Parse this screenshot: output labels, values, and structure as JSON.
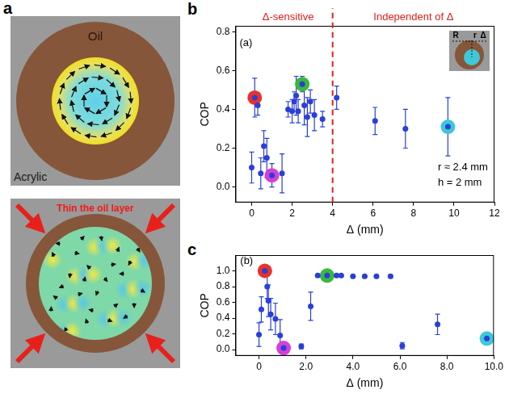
{
  "diagram": {
    "panel": "a",
    "labels": {
      "oil": "Oil",
      "acrylic": "Acrylic",
      "action": "Thin the oil layer"
    }
  },
  "chart_data": [
    {
      "type": "scatter",
      "panel": "b",
      "x_label": "Δ (mm)",
      "y_label": "COP",
      "xlim": [
        -0.8,
        12
      ],
      "xticks": [
        0,
        2,
        4,
        6,
        8,
        10,
        12
      ],
      "ylim": [
        -0.08,
        0.83
      ],
      "yticks": [
        {
          "value": 0,
          "label": "0.0"
        },
        0.2,
        0.4,
        0.6,
        0.8
      ],
      "grid": false,
      "series": [
        {
          "color": "#2a3fd8",
          "marker": "circle",
          "x": [
            0.0,
            0.3,
            0.45,
            0.6,
            0.75,
            1.5,
            1.8,
            2.0,
            2.1,
            2.2,
            2.3,
            2.6,
            2.75,
            2.9,
            3.1,
            3.5,
            4.2,
            6.1,
            7.6
          ],
          "values": [
            0.1,
            0.42,
            0.07,
            0.21,
            0.15,
            0.07,
            0.4,
            0.39,
            0.44,
            0.47,
            0.39,
            0.42,
            0.36,
            0.44,
            0.37,
            0.35,
            0.46,
            0.34,
            0.3
          ],
          "errors": [
            0.08,
            0.05,
            0.08,
            0.08,
            0.1,
            0.1,
            0.04,
            0.06,
            0.05,
            0.1,
            0.06,
            0.1,
            0.1,
            0.06,
            0.08,
            0.04,
            0.06,
            0.07,
            0.1
          ]
        },
        {
          "color": "#e8322c",
          "marker": "halo",
          "x": [
            0.15
          ],
          "values": [
            0.46
          ],
          "errors": [
            0.1
          ]
        },
        {
          "color": "#d63fd6",
          "marker": "halo",
          "x": [
            1.0
          ],
          "values": [
            0.06
          ],
          "errors": [
            0.06
          ]
        },
        {
          "color": "#3cb83c",
          "marker": "halo",
          "x": [
            2.5
          ],
          "values": [
            0.53
          ],
          "errors": [
            0.04
          ]
        },
        {
          "color": "#3ec8d8",
          "marker": "halo",
          "x": [
            9.7
          ],
          "values": [
            0.31
          ],
          "errors": [
            0.15
          ]
        }
      ],
      "vlines": [
        {
          "x": 4,
          "color": "#e0201c",
          "line_style": "dashed"
        }
      ],
      "annotations": [
        {
          "text": "(a)",
          "x": -0.6,
          "y": 0.74
        },
        {
          "text": "Δ-sensitive",
          "x": 1.8,
          "color": "#e0201c"
        },
        {
          "text": "Independent of Δ",
          "x": 8,
          "color": "#e0201c"
        },
        {
          "text": "r ≈ 2.4 mm",
          "x": 9.2,
          "y": 0.1
        },
        {
          "text": "h = 2 mm",
          "x": 9.2,
          "y": 0.02
        }
      ],
      "inset": {
        "labels": [
          "R",
          "r",
          "Δ"
        ]
      }
    },
    {
      "type": "scatter",
      "panel": "c",
      "x_label": "Δ (mm)",
      "y_label": "COP",
      "xlim": [
        -1.0,
        10.0
      ],
      "xticks": [
        0,
        {
          "value": 2,
          "label": "2.0"
        },
        {
          "value": 4,
          "label": "4.0"
        },
        {
          "value": 6,
          "label": "6.0"
        },
        {
          "value": 8,
          "label": "8.0"
        },
        {
          "value": 10,
          "label": "10.0"
        }
      ],
      "ylim": [
        -0.08,
        1.2
      ],
      "yticks": [
        {
          "value": 0,
          "label": "0.0"
        },
        0.2,
        0.4,
        0.6,
        0.8,
        {
          "value": 1,
          "label": "1.0"
        }
      ],
      "grid": false,
      "series": [
        {
          "color": "#2a3fd8",
          "marker": "circle",
          "x": [
            0.0,
            0.1,
            0.35,
            0.4,
            0.5,
            0.7,
            0.9,
            1.8,
            2.2,
            2.5,
            3.3,
            3.5,
            4.0,
            4.5,
            5.0,
            5.6,
            6.1,
            7.6
          ],
          "values": [
            0.19,
            0.51,
            0.8,
            0.62,
            0.45,
            0.39,
            0.18,
            0.04,
            0.55,
            0.94,
            0.94,
            0.94,
            0.93,
            0.93,
            0.93,
            0.93,
            0.05,
            0.32
          ],
          "errors": [
            0.15,
            0.16,
            0.15,
            0.2,
            0.2,
            0.2,
            0.2,
            0.03,
            0.18,
            0.01,
            0.01,
            0.01,
            0.01,
            0.01,
            0.01,
            0.01,
            0.04,
            0.13
          ]
        },
        {
          "color": "#e8322c",
          "marker": "halo",
          "x": [
            0.25
          ],
          "values": [
            1.0
          ],
          "errors": [
            0.02
          ]
        },
        {
          "color": "#d63fd6",
          "marker": "halo",
          "x": [
            1.05
          ],
          "values": [
            0.02
          ],
          "errors": [
            0.02
          ]
        },
        {
          "color": "#3cb83c",
          "marker": "halo",
          "x": [
            2.9
          ],
          "values": [
            0.94
          ],
          "errors": [
            0.01
          ]
        },
        {
          "color": "#3ec8d8",
          "marker": "halo",
          "x": [
            9.7
          ],
          "values": [
            0.14
          ],
          "errors": [
            0.05
          ]
        }
      ],
      "annotations": [
        {
          "text": "(b)",
          "x": -0.8,
          "y": 1.12
        }
      ]
    }
  ]
}
